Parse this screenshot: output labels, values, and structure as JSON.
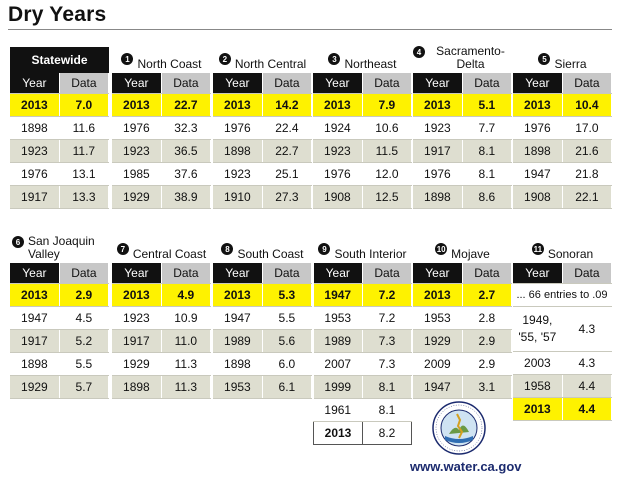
{
  "title": "Dry Years",
  "footer": {
    "url": "www.water.ca.gov",
    "seal_text": "DEPARTMENT OF WATER RESOURCES · STATE OF CALIFORNIA"
  },
  "colors": {
    "header_black": "#111111",
    "data_header_gray": "#c7c7c7",
    "highlight_yellow": "#fef200",
    "data_tint": "#deded0",
    "url_blue": "#1b2a6e"
  },
  "labels": {
    "year": "Year",
    "data": "Data"
  },
  "regions": [
    {
      "name": "Statewide",
      "num": "",
      "current": [
        "2013",
        "7.0"
      ],
      "rows": [
        [
          "1898",
          "11.6"
        ],
        [
          "1923",
          "11.7"
        ],
        [
          "1976",
          "13.1"
        ],
        [
          "1917",
          "13.3"
        ]
      ]
    },
    {
      "name": "North Coast",
      "num": "1",
      "current": [
        "2013",
        "22.7"
      ],
      "rows": [
        [
          "1976",
          "32.3"
        ],
        [
          "1923",
          "36.5"
        ],
        [
          "1985",
          "37.6"
        ],
        [
          "1929",
          "38.9"
        ]
      ]
    },
    {
      "name": "North Central",
      "num": "2",
      "current": [
        "2013",
        "14.2"
      ],
      "rows": [
        [
          "1976",
          "22.4"
        ],
        [
          "1898",
          "22.7"
        ],
        [
          "1923",
          "25.1"
        ],
        [
          "1910",
          "27.3"
        ]
      ]
    },
    {
      "name": "Northeast",
      "num": "3",
      "current": [
        "2013",
        "7.9"
      ],
      "rows": [
        [
          "1924",
          "10.6"
        ],
        [
          "1923",
          "11.5"
        ],
        [
          "1976",
          "12.0"
        ],
        [
          "1908",
          "12.5"
        ]
      ]
    },
    {
      "name": "Sacramento-Delta",
      "num": "4",
      "current": [
        "2013",
        "5.1"
      ],
      "rows": [
        [
          "1923",
          "7.7"
        ],
        [
          "1917",
          "8.1"
        ],
        [
          "1976",
          "8.1"
        ],
        [
          "1898",
          "8.6"
        ]
      ]
    },
    {
      "name": "Sierra",
      "num": "5",
      "current": [
        "2013",
        "10.4"
      ],
      "rows": [
        [
          "1976",
          "17.0"
        ],
        [
          "1898",
          "21.6"
        ],
        [
          "1947",
          "21.8"
        ],
        [
          "1908",
          "22.1"
        ]
      ]
    },
    {
      "name": "San Joaquin Valley",
      "num": "6",
      "current": [
        "2013",
        "2.9"
      ],
      "rows": [
        [
          "1947",
          "4.5"
        ],
        [
          "1917",
          "5.2"
        ],
        [
          "1898",
          "5.5"
        ],
        [
          "1929",
          "5.7"
        ]
      ]
    },
    {
      "name": "Central Coast",
      "num": "7",
      "current": [
        "2013",
        "4.9"
      ],
      "rows": [
        [
          "1923",
          "10.9"
        ],
        [
          "1917",
          "11.0"
        ],
        [
          "1929",
          "11.3"
        ],
        [
          "1898",
          "11.3"
        ]
      ]
    },
    {
      "name": "South Coast",
      "num": "8",
      "current": [
        "2013",
        "5.3"
      ],
      "rows": [
        [
          "1947",
          "5.5"
        ],
        [
          "1989",
          "5.6"
        ],
        [
          "1898",
          "6.0"
        ],
        [
          "1953",
          "6.1"
        ]
      ]
    },
    {
      "name": "South Interior",
      "num": "9",
      "current": [
        "1947",
        "7.2"
      ],
      "rows": [
        [
          "1953",
          "7.2"
        ],
        [
          "1989",
          "7.3"
        ],
        [
          "2007",
          "7.3"
        ],
        [
          "1999",
          "8.1"
        ],
        [
          "1961",
          "8.1"
        ]
      ],
      "last": [
        "2013",
        "8.2"
      ]
    },
    {
      "name": "Mojave",
      "num": "10",
      "current": [
        "2013",
        "2.7"
      ],
      "rows": [
        [
          "1953",
          "2.8"
        ],
        [
          "1929",
          "2.9"
        ],
        [
          "2009",
          "2.9"
        ],
        [
          "1947",
          "3.1"
        ]
      ]
    },
    {
      "name": "Sonoran",
      "num": "11",
      "note": "... 66 entries to .09",
      "multi_year": "1949, '55, '57",
      "multi_value": "4.3",
      "rows": [
        [
          "2003",
          "4.3"
        ],
        [
          "1958",
          "4.4"
        ]
      ],
      "last": [
        "2013",
        "4.4"
      ]
    }
  ]
}
